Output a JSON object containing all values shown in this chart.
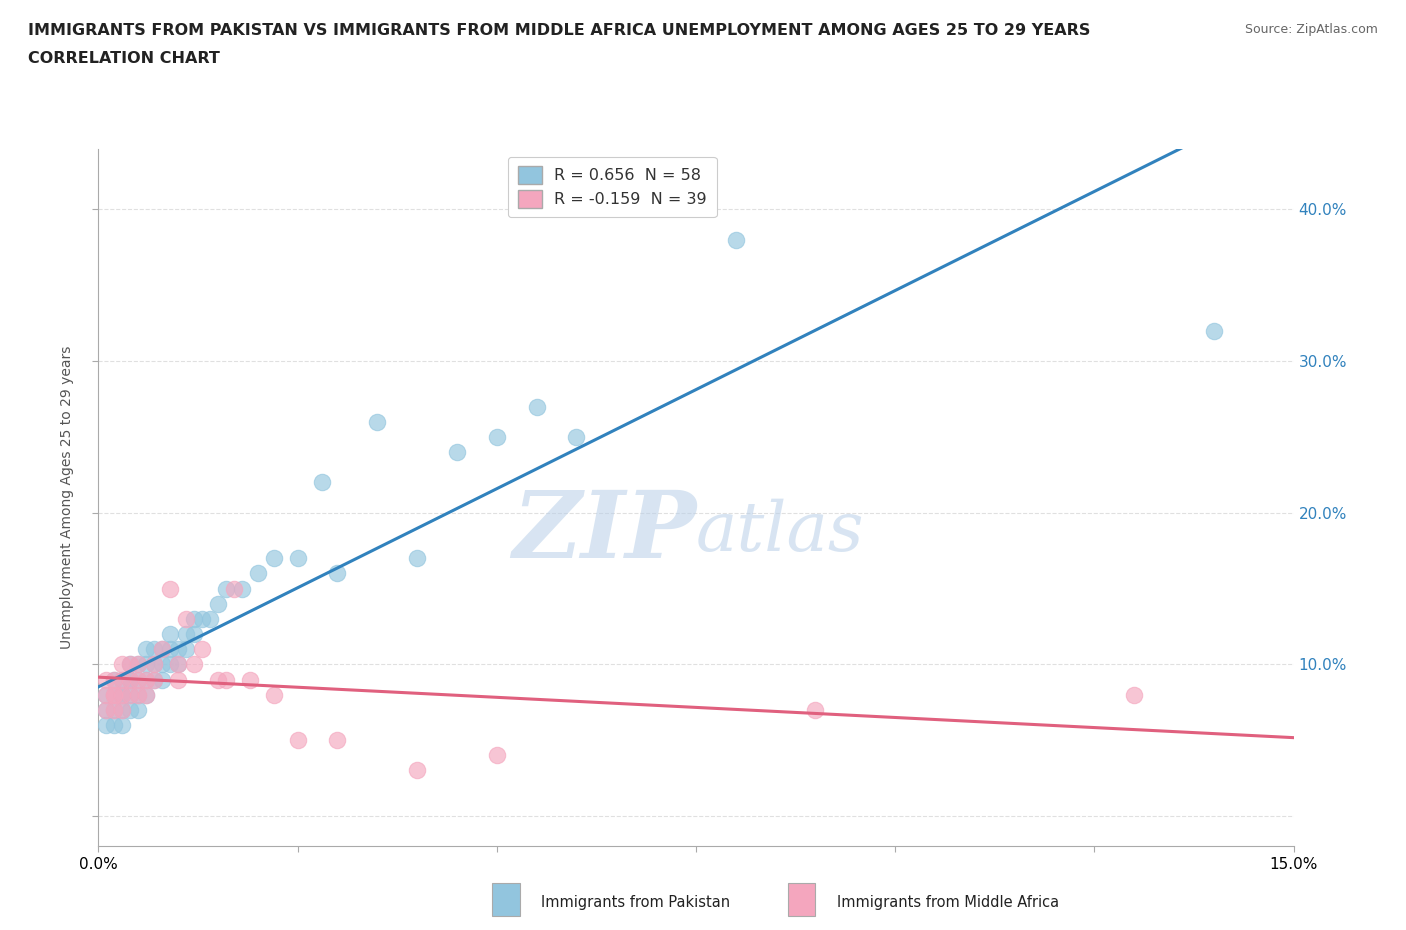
{
  "title_line1": "IMMIGRANTS FROM PAKISTAN VS IMMIGRANTS FROM MIDDLE AFRICA UNEMPLOYMENT AMONG AGES 25 TO 29 YEARS",
  "title_line2": "CORRELATION CHART",
  "source_text": "Source: ZipAtlas.com",
  "ylabel": "Unemployment Among Ages 25 to 29 years",
  "xlim": [
    0.0,
    0.15
  ],
  "ylim": [
    -0.02,
    0.44
  ],
  "xtick_positions": [
    0.0,
    0.025,
    0.05,
    0.075,
    0.1,
    0.125,
    0.15
  ],
  "ytick_positions": [
    0.0,
    0.1,
    0.2,
    0.3,
    0.4
  ],
  "ytick_labels": [
    "",
    "10.0%",
    "20.0%",
    "30.0%",
    "40.0%"
  ],
  "R_pakistan": 0.656,
  "N_pakistan": 58,
  "R_middle_africa": -0.159,
  "N_middle_africa": 39,
  "color_pakistan": "#92c5de",
  "color_middle_africa": "#f4a6be",
  "line_color_pakistan": "#3182bd",
  "line_color_middle_africa": "#e0607e",
  "pakistan_x": [
    0.001,
    0.001,
    0.001,
    0.002,
    0.002,
    0.002,
    0.002,
    0.003,
    0.003,
    0.003,
    0.003,
    0.003,
    0.004,
    0.004,
    0.004,
    0.004,
    0.004,
    0.005,
    0.005,
    0.005,
    0.005,
    0.006,
    0.006,
    0.006,
    0.006,
    0.007,
    0.007,
    0.007,
    0.008,
    0.008,
    0.008,
    0.009,
    0.009,
    0.009,
    0.01,
    0.01,
    0.011,
    0.011,
    0.012,
    0.012,
    0.013,
    0.014,
    0.015,
    0.016,
    0.018,
    0.02,
    0.022,
    0.025,
    0.028,
    0.03,
    0.035,
    0.04,
    0.045,
    0.05,
    0.055,
    0.06,
    0.08,
    0.14
  ],
  "pakistan_y": [
    0.06,
    0.07,
    0.08,
    0.06,
    0.07,
    0.08,
    0.09,
    0.06,
    0.07,
    0.08,
    0.08,
    0.09,
    0.07,
    0.08,
    0.09,
    0.09,
    0.1,
    0.07,
    0.08,
    0.09,
    0.1,
    0.08,
    0.09,
    0.1,
    0.11,
    0.09,
    0.1,
    0.11,
    0.09,
    0.1,
    0.11,
    0.1,
    0.11,
    0.12,
    0.1,
    0.11,
    0.11,
    0.12,
    0.12,
    0.13,
    0.13,
    0.13,
    0.14,
    0.15,
    0.15,
    0.16,
    0.17,
    0.17,
    0.22,
    0.16,
    0.26,
    0.17,
    0.24,
    0.25,
    0.27,
    0.25,
    0.38,
    0.32
  ],
  "middle_africa_x": [
    0.001,
    0.001,
    0.001,
    0.002,
    0.002,
    0.002,
    0.002,
    0.003,
    0.003,
    0.003,
    0.003,
    0.004,
    0.004,
    0.004,
    0.005,
    0.005,
    0.005,
    0.006,
    0.006,
    0.007,
    0.007,
    0.008,
    0.009,
    0.01,
    0.01,
    0.011,
    0.012,
    0.013,
    0.015,
    0.016,
    0.017,
    0.019,
    0.022,
    0.025,
    0.03,
    0.04,
    0.05,
    0.09,
    0.13
  ],
  "middle_africa_y": [
    0.07,
    0.08,
    0.09,
    0.07,
    0.08,
    0.08,
    0.09,
    0.07,
    0.08,
    0.09,
    0.1,
    0.08,
    0.09,
    0.1,
    0.08,
    0.09,
    0.1,
    0.08,
    0.09,
    0.09,
    0.1,
    0.11,
    0.15,
    0.09,
    0.1,
    0.13,
    0.1,
    0.11,
    0.09,
    0.09,
    0.15,
    0.09,
    0.08,
    0.05,
    0.05,
    0.03,
    0.04,
    0.07,
    0.08
  ]
}
